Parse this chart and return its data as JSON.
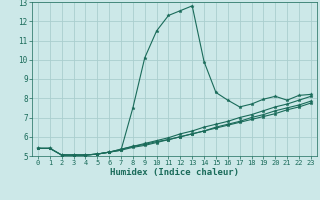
{
  "xlabel": "Humidex (Indice chaleur)",
  "bg_color": "#cce8e8",
  "grid_color": "#aacece",
  "line_color": "#1a6b5a",
  "xlim": [
    -0.5,
    23.5
  ],
  "ylim": [
    5,
    13
  ],
  "xticks": [
    0,
    1,
    2,
    3,
    4,
    5,
    6,
    7,
    8,
    9,
    10,
    11,
    12,
    13,
    14,
    15,
    16,
    17,
    18,
    19,
    20,
    21,
    22,
    23
  ],
  "yticks": [
    5,
    6,
    7,
    8,
    9,
    10,
    11,
    12,
    13
  ],
  "curve1_x": [
    0,
    1,
    2,
    3,
    4,
    5,
    6,
    7,
    8,
    9,
    10,
    11,
    12,
    13,
    14,
    15,
    16,
    17,
    18,
    19,
    20,
    21,
    22,
    23
  ],
  "curve1_y": [
    5.4,
    5.4,
    5.05,
    5.05,
    5.05,
    5.1,
    5.2,
    5.3,
    7.5,
    10.1,
    11.5,
    12.3,
    12.55,
    12.8,
    9.9,
    8.3,
    7.9,
    7.55,
    7.7,
    7.95,
    8.1,
    7.9,
    8.15,
    8.2
  ],
  "curve2_x": [
    0,
    1,
    2,
    3,
    4,
    5,
    6,
    7,
    8,
    9,
    10,
    11,
    12,
    13,
    14,
    15,
    16,
    17,
    18,
    19,
    20,
    21,
    22,
    23
  ],
  "curve2_y": [
    5.4,
    5.4,
    5.05,
    5.05,
    5.05,
    5.1,
    5.2,
    5.35,
    5.5,
    5.65,
    5.8,
    5.95,
    6.15,
    6.3,
    6.5,
    6.65,
    6.8,
    7.0,
    7.15,
    7.35,
    7.55,
    7.7,
    7.9,
    8.1
  ],
  "curve3_x": [
    0,
    1,
    2,
    3,
    4,
    5,
    6,
    7,
    8,
    9,
    10,
    11,
    12,
    13,
    14,
    15,
    16,
    17,
    18,
    19,
    20,
    21,
    22,
    23
  ],
  "curve3_y": [
    5.4,
    5.4,
    5.05,
    5.05,
    5.05,
    5.1,
    5.2,
    5.35,
    5.5,
    5.6,
    5.75,
    5.85,
    6.0,
    6.15,
    6.3,
    6.5,
    6.65,
    6.8,
    7.0,
    7.15,
    7.35,
    7.5,
    7.65,
    7.85
  ],
  "curve4_x": [
    2,
    3,
    4,
    5,
    6,
    7,
    8,
    9,
    10,
    11,
    12,
    13,
    14,
    15,
    16,
    17,
    18,
    19,
    20,
    21,
    22,
    23
  ],
  "curve4_y": [
    5.05,
    5.05,
    5.05,
    5.1,
    5.2,
    5.3,
    5.45,
    5.55,
    5.7,
    5.85,
    6.0,
    6.15,
    6.3,
    6.45,
    6.6,
    6.75,
    6.9,
    7.05,
    7.2,
    7.4,
    7.55,
    7.75
  ]
}
